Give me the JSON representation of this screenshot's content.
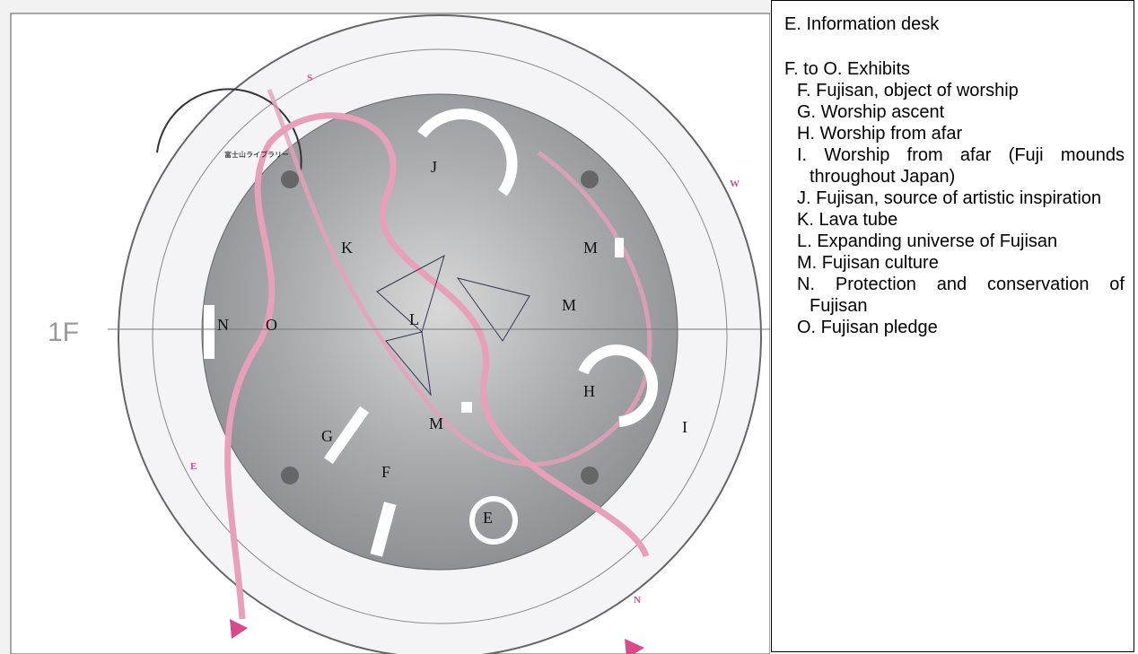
{
  "floor_label": "1F",
  "compass": {
    "south": "S",
    "west": "W",
    "north": "N",
    "east": "E"
  },
  "map_labels": {
    "library": "富士山ライブラリー",
    "zone_j": "J",
    "zone_k": "K",
    "zone_m1": "M",
    "zone_m2": "M",
    "zone_m3": "M",
    "zone_n": "N",
    "zone_o": "O",
    "zone_l": "L",
    "zone_h": "H",
    "zone_g": "G",
    "zone_f": "F",
    "zone_e": "E",
    "zone_i": "I"
  },
  "legend": {
    "info": "E. Information desk",
    "exhibits_heading": "F. to O. Exhibits",
    "exhibits": [
      "F. Fujisan, object of worship",
      "G. Worship ascent",
      "H. Worship from afar",
      "I. Worship from afar (Fuji mounds throughout Japan)",
      "J. Fujisan, source of artistic inspiration",
      "K. Lava tube",
      "L. Expanding universe of Fujisan",
      "M. Fujisan culture",
      "N. Protection and conservation of Fujisan",
      "O. Fujisan pledge"
    ]
  }
}
